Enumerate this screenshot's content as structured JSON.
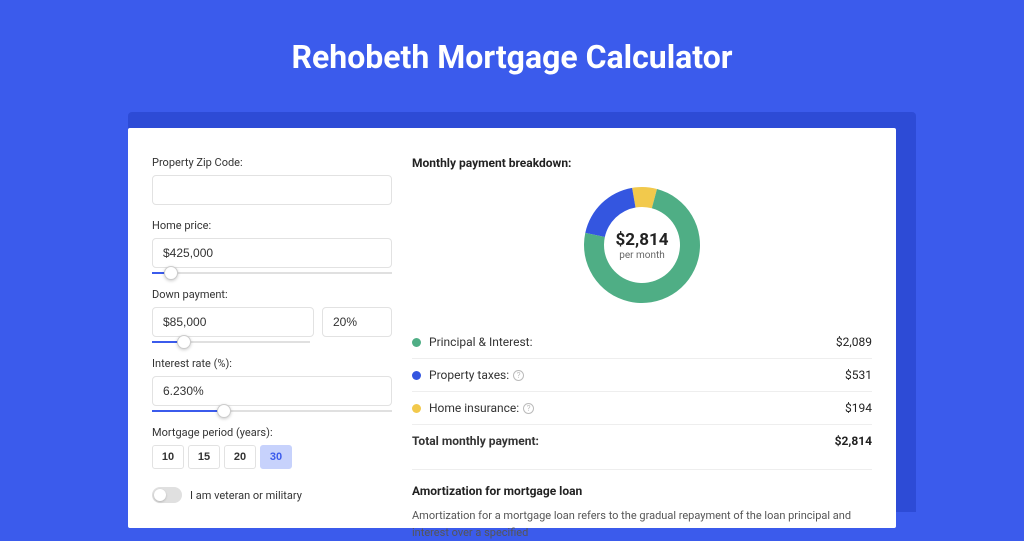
{
  "page": {
    "title": "Rehobeth Mortgage Calculator",
    "bg_color": "#3b5bec",
    "card_bg": "#ffffff"
  },
  "form": {
    "zip": {
      "label": "Property Zip Code:",
      "value": ""
    },
    "home_price": {
      "label": "Home price:",
      "value": "$425,000",
      "slider_pct": 8
    },
    "down_payment": {
      "label": "Down payment:",
      "value": "$85,000",
      "pct": "20%",
      "slider_pct": 20
    },
    "interest": {
      "label": "Interest rate (%):",
      "value": "6.230%",
      "slider_pct": 30
    },
    "period": {
      "label": "Mortgage period (years):",
      "options": [
        "10",
        "15",
        "20",
        "30"
      ],
      "selected": "30"
    },
    "veteran": {
      "label": "I am veteran or military",
      "checked": false
    }
  },
  "breakdown": {
    "title": "Monthly payment breakdown:",
    "center_value": "$2,814",
    "center_sub": "per month",
    "items": [
      {
        "label": "Principal & Interest:",
        "value": "$2,089",
        "color": "#4fae85",
        "pct": 74.2,
        "info": false
      },
      {
        "label": "Property taxes:",
        "value": "$531",
        "color": "#3456e0",
        "pct": 18.9,
        "info": true
      },
      {
        "label": "Home insurance:",
        "value": "$194",
        "color": "#f2c94c",
        "pct": 6.9,
        "info": true
      }
    ],
    "total": {
      "label": "Total monthly payment:",
      "value": "$2,814"
    }
  },
  "amortization": {
    "title": "Amortization for mortgage loan",
    "text": "Amortization for a mortgage loan refers to the gradual repayment of the loan principal and interest over a specified"
  }
}
